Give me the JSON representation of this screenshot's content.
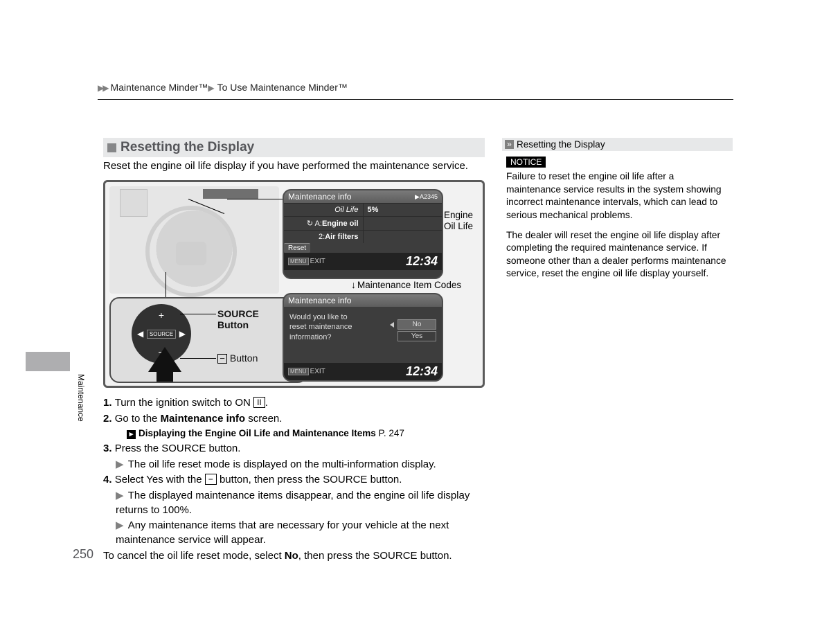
{
  "breadcrumb": {
    "l1": "Maintenance Minder™",
    "l2": "To Use Maintenance Minder™"
  },
  "section": {
    "title": "Resetting the Display"
  },
  "intro": "Reset the engine oil life display if you have performed the maintenance service.",
  "graphic": {
    "source_label_line1": "SOURCE",
    "source_label_line2": "Button",
    "minus_label": "Button",
    "minus_symbol": "−",
    "source_btn_text": "SOURCE",
    "callout_oil_l1": "Engine",
    "callout_oil_l2": "Oil Life",
    "callout_codes": "Maintenance Item Codes",
    "screen1": {
      "title": "Maintenance info",
      "code": "A2345",
      "row_oil_label": "Oil Life",
      "row_oil_value": "5%",
      "row_a_label": "A:",
      "row_a_value": "Engine oil",
      "row_2_label": "2:",
      "row_2_value": "Air filters",
      "reset": "Reset",
      "menu": "MENU",
      "exit": "EXIT",
      "clock": "12:34"
    },
    "screen2": {
      "title": "Maintenance info",
      "prompt_l1": "Would you like to",
      "prompt_l2": "reset maintenance",
      "prompt_l3": "information?",
      "opt_no": "No",
      "opt_yes": "Yes",
      "menu": "MENU",
      "exit": "EXIT",
      "clock": "12:34"
    }
  },
  "steps": {
    "s1a": "Turn the ignition switch to ON ",
    "s1b": ".",
    "ign_symbol": "II",
    "s2a": "Go to the ",
    "s2b": "Maintenance info",
    "s2c": " screen.",
    "ref_text": "Displaying the Engine Oil Life and Maintenance Items",
    "ref_page": "P. 247",
    "s3": "Press the SOURCE button.",
    "s3sub": "The oil life reset mode is displayed on the multi-information display.",
    "s4a": "Select Yes with the ",
    "s4b": " button, then press the SOURCE button.",
    "s4_minus": "−",
    "s4sub1": "The displayed maintenance items disappear, and the engine oil life display returns to 100%.",
    "s4sub2": "Any maintenance items that are necessary for your vehicle at the next maintenance service will appear.",
    "cancel_a": "To cancel the oil life reset mode, select ",
    "cancel_b": "No",
    "cancel_c": ", then press the SOURCE button."
  },
  "side": {
    "bar": "Resetting the Display",
    "notice": "NOTICE",
    "p1": "Failure to reset the engine oil life after a maintenance service results in the system showing incorrect maintenance intervals, which can lead to serious mechanical problems.",
    "p2": "The dealer will reset the engine oil life display after completing the required maintenance service. If someone other than a dealer performs maintenance service, reset the engine oil life display yourself."
  },
  "page_number": "250",
  "tab_label": "Maintenance",
  "colors": {
    "section_bg": "#e7e8e9",
    "section_sq": "#868789",
    "screen_body": "#3d3d3d",
    "notice_bg": "#000000"
  }
}
